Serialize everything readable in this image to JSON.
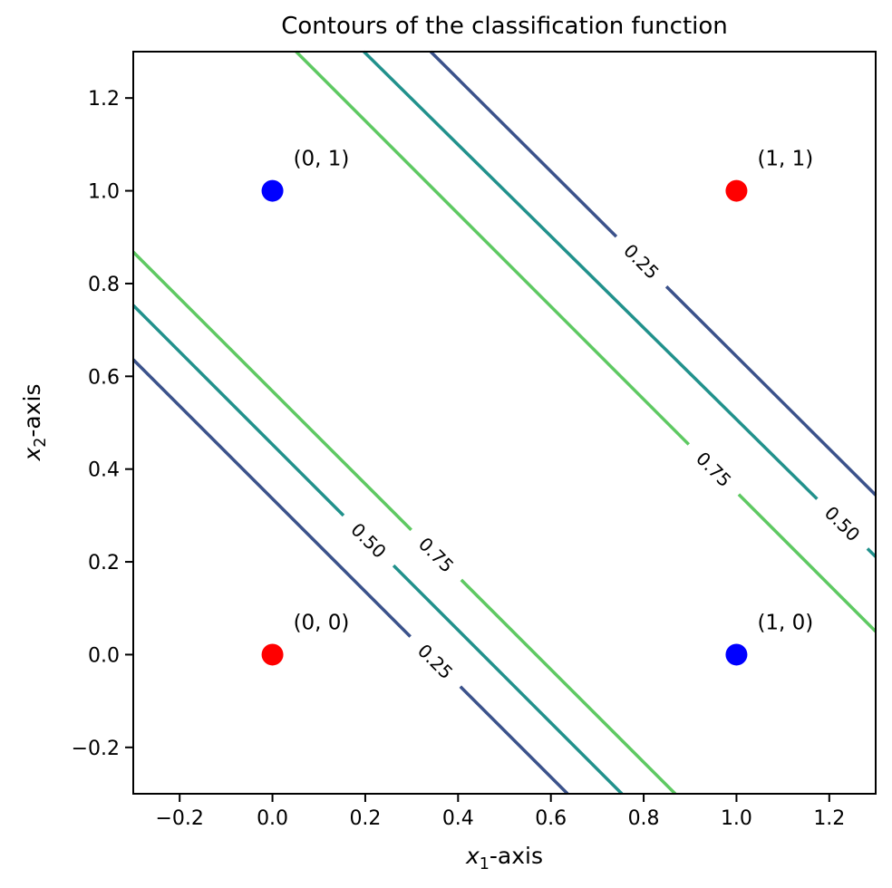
{
  "chart_data": {
    "type": "contour",
    "title": "Contours of the classification function",
    "xlabel_parts": {
      "var": "x",
      "sub": "1",
      "rest": "-axis"
    },
    "ylabel_parts": {
      "var": "x",
      "sub": "2",
      "rest": "-axis"
    },
    "xlim": [
      -0.3,
      1.3
    ],
    "ylim": [
      -0.3,
      1.3
    ],
    "grid": false,
    "legend": "none",
    "levels": [
      0.25,
      0.5,
      0.75
    ],
    "level_colors": {
      "0.25": "#3b528b",
      "0.50": "#21918c",
      "0.75": "#5ec962"
    },
    "xticks": [
      {
        "v": -0.2,
        "label": "−0.2"
      },
      {
        "v": 0.0,
        "label": "0.0"
      },
      {
        "v": 0.2,
        "label": "0.2"
      },
      {
        "v": 0.4,
        "label": "0.4"
      },
      {
        "v": 0.6,
        "label": "0.6"
      },
      {
        "v": 0.8,
        "label": "0.8"
      },
      {
        "v": 1.0,
        "label": "1.0"
      },
      {
        "v": 1.2,
        "label": "1.2"
      }
    ],
    "yticks": [
      {
        "v": -0.2,
        "label": "−0.2"
      },
      {
        "v": 0.0,
        "label": "0.0"
      },
      {
        "v": 0.2,
        "label": "0.2"
      },
      {
        "v": 0.4,
        "label": "0.4"
      },
      {
        "v": 0.6,
        "label": "0.6"
      },
      {
        "v": 0.8,
        "label": "0.8"
      },
      {
        "v": 1.0,
        "label": "1.0"
      },
      {
        "v": 1.2,
        "label": "1.2"
      }
    ],
    "contours": [
      {
        "level": "0.25",
        "band": "upper",
        "color": "#3b528b",
        "p1": [
          0.341,
          1.3
        ],
        "p2": [
          1.3,
          0.344
        ],
        "label_at": [
          0.795,
          0.85
        ]
      },
      {
        "level": "0.50",
        "band": "upper",
        "color": "#21918c",
        "p1": [
          0.197,
          1.3
        ],
        "p2": [
          1.3,
          0.211
        ],
        "label_at": [
          1.228,
          0.27
        ]
      },
      {
        "level": "0.75",
        "band": "upper",
        "color": "#5ec962",
        "p1": [
          0.051,
          1.3
        ],
        "p2": [
          1.3,
          0.05
        ],
        "label_at": [
          0.951,
          0.4
        ]
      },
      {
        "level": "0.75",
        "band": "lower",
        "color": "#5ec962",
        "p1": [
          -0.3,
          0.868
        ],
        "p2": [
          0.868,
          -0.3
        ],
        "label_at": [
          0.353,
          0.215
        ]
      },
      {
        "level": "0.50",
        "band": "lower",
        "color": "#21918c",
        "p1": [
          -0.3,
          0.753
        ],
        "p2": [
          0.753,
          -0.3
        ],
        "label_at": [
          0.207,
          0.246
        ]
      },
      {
        "level": "0.25",
        "band": "lower",
        "color": "#3b528b",
        "p1": [
          -0.3,
          0.636
        ],
        "p2": [
          0.636,
          -0.3
        ],
        "label_at": [
          0.351,
          -0.015
        ]
      }
    ],
    "points": [
      {
        "x": 0,
        "y": 1,
        "color": "#0000ff",
        "label": "(0, 1)"
      },
      {
        "x": 1,
        "y": 1,
        "color": "#ff0000",
        "label": "(1, 1)"
      },
      {
        "x": 0,
        "y": 0,
        "color": "#ff0000",
        "label": "(0, 0)"
      },
      {
        "x": 1,
        "y": 0,
        "color": "#0000ff",
        "label": "(1, 0)"
      }
    ]
  }
}
